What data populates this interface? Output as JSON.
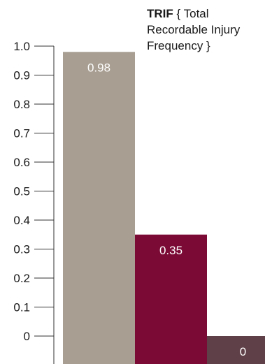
{
  "chart_data": {
    "type": "bar",
    "title_bold": "TRIF",
    "title_rest": "{ Total Recordable Injury Frequency }",
    "categories": [
      "",
      "",
      ""
    ],
    "values": [
      0.98,
      0.35,
      0
    ],
    "data_labels": [
      "0.98",
      "0.35",
      "0"
    ],
    "bar_colors": [
      "#a89e91",
      "#7b0a35",
      "#5f4048"
    ],
    "ylim": [
      0,
      1.0
    ],
    "yticks": [
      0,
      0.1,
      0.2,
      0.3,
      0.4,
      0.5,
      0.6,
      0.7,
      0.8,
      0.9,
      1.0
    ],
    "ytick_labels": [
      "0",
      "0.1",
      "0.2",
      "0.3",
      "0.4",
      "0.5",
      "0.6",
      "0.7",
      "0.8",
      "0.9",
      "1.0"
    ],
    "grid": false,
    "legend": "none"
  }
}
